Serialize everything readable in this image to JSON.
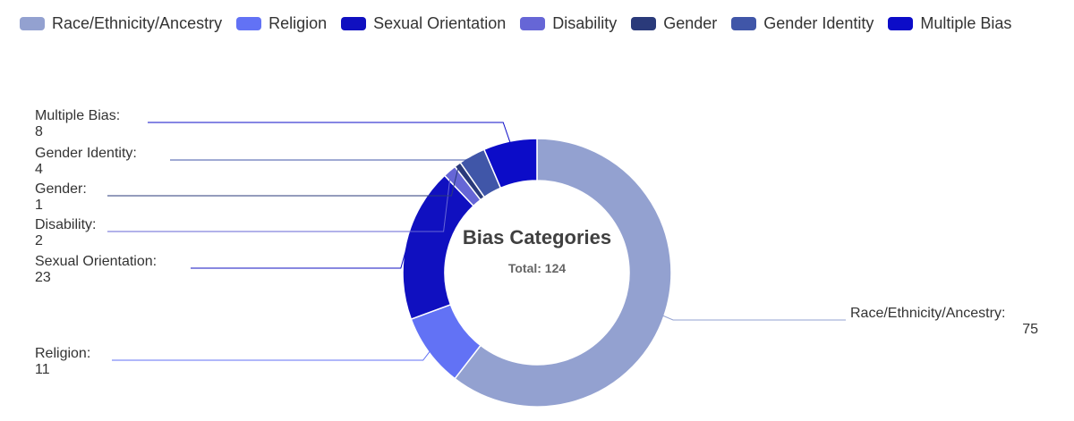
{
  "chart_data": {
    "type": "pie",
    "donut": true,
    "title": "Bias Categories",
    "subtitle": "Total: 124",
    "legend_position": "top",
    "categories": [
      "Race/Ethnicity/Ancestry",
      "Religion",
      "Sexual Orientation",
      "Disability",
      "Gender",
      "Gender Identity",
      "Multiple Bias"
    ],
    "values": [
      75,
      11,
      23,
      2,
      1,
      4,
      8
    ],
    "colors": [
      "#93a1d0",
      "#6272f5",
      "#1010c0",
      "#6666d6",
      "#2a3a7a",
      "#4056a8",
      "#0c0cc8"
    ],
    "data_labels": [
      {
        "name": "Race/Ethnicity/Ancestry:",
        "value": "75"
      },
      {
        "name": "Religion:",
        "value": "11"
      },
      {
        "name": "Sexual Orientation:",
        "value": "23"
      },
      {
        "name": "Disability:",
        "value": "2"
      },
      {
        "name": "Gender:",
        "value": "1"
      },
      {
        "name": "Gender Identity:",
        "value": "4"
      },
      {
        "name": "Multiple Bias:",
        "value": "8"
      }
    ]
  }
}
